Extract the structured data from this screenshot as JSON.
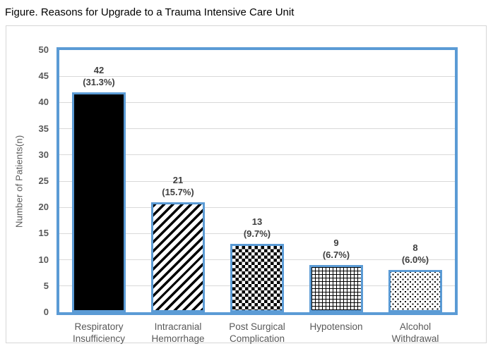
{
  "title": "Figure. Reasons for Upgrade to a Trauma Intensive Care Unit",
  "chart_data": {
    "type": "bar",
    "categories": [
      "Respiratory Insufficiency",
      "Intracranial Hemorrhage",
      "Post Surgical Complication",
      "Hypotension",
      "Alcohol Withdrawal"
    ],
    "values": [
      42,
      21,
      13,
      9,
      8
    ],
    "percent_labels": [
      "(31.3%)",
      "(15.7%)",
      "(9.7%)",
      "(6.7%)",
      "(6.0%)"
    ],
    "xlabel": "",
    "ylabel": "Number of Patients(n)",
    "ylim": [
      0,
      50
    ],
    "ytick_step": 5,
    "grid": true,
    "legend": false,
    "bar_patterns": [
      "solid-black",
      "diagonal-stripes",
      "checkerboard",
      "grid",
      "dots"
    ]
  },
  "colors": {
    "accent_blue": "#5B9BD5",
    "gridline": "#D9D9D9",
    "axis_text": "#595959",
    "data_label_text": "#3F3F3F",
    "title_text": "#000000",
    "figure_border": "#D6D6D6",
    "bar_fill": "#000000"
  }
}
